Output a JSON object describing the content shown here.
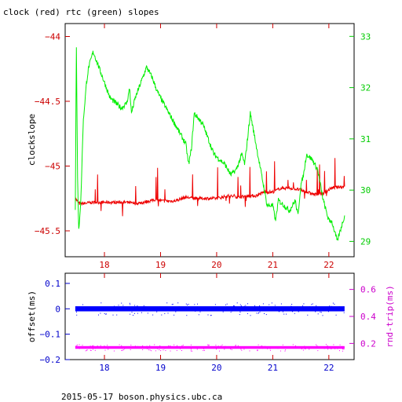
{
  "header": {
    "title": "clock (red) rtc (green) slopes"
  },
  "footer": {
    "text": "2015-05-17 boson.physics.ubc.ca"
  },
  "colors": {
    "red": "#ee0000",
    "green": "#00ee00",
    "blue": "#0000ff",
    "magenta": "#ff00ff",
    "tick_red": "#cc0000",
    "tick_green": "#00cc00",
    "tick_blue": "#0000cc",
    "tick_magenta": "#cc00cc"
  },
  "chart_data": [
    {
      "type": "line",
      "panel": "top",
      "title": "clock (red) rtc (green) slopes",
      "xlabel": "",
      "ylabel": "clockslope",
      "ylabel_right": "",
      "xlim": [
        17.3,
        22.45
      ],
      "ylim": [
        -45.7,
        -43.9
      ],
      "ylim_right": [
        28.7,
        33.25
      ],
      "x_ticks": [
        18,
        19,
        20,
        21,
        22
      ],
      "y_ticks": [
        -44,
        -44.5,
        -45,
        -45.5
      ],
      "y_ticks_right": [
        29,
        30,
        31,
        32,
        33
      ],
      "series": [
        {
          "axis": "left",
          "color": "#ee0000",
          "x": [
            17.48,
            17.55,
            17.6,
            17.8,
            18.0,
            18.2,
            18.4,
            18.55,
            18.7,
            18.9,
            19.05,
            19.25,
            19.45,
            19.6,
            19.8,
            20.0,
            20.2,
            20.4,
            20.55,
            20.7,
            20.85,
            21.0,
            21.15,
            21.3,
            21.45,
            21.6,
            21.75,
            21.9,
            22.05,
            22.2,
            22.28
          ],
          "y": [
            -45.25,
            -45.29,
            -45.29,
            -45.28,
            -45.28,
            -45.28,
            -45.28,
            -45.29,
            -45.28,
            -45.26,
            -45.27,
            -45.27,
            -45.24,
            -45.25,
            -45.25,
            -45.25,
            -45.23,
            -45.24,
            -45.23,
            -45.23,
            -45.2,
            -45.2,
            -45.17,
            -45.17,
            -45.18,
            -45.2,
            -45.22,
            -45.21,
            -45.17,
            -45.16,
            -45.16
          ]
        },
        {
          "axis": "right",
          "color": "#00ee00",
          "x": [
            17.48,
            17.5,
            17.52,
            17.54,
            17.56,
            17.58,
            17.62,
            17.68,
            17.72,
            17.8,
            17.9,
            18.0,
            18.1,
            18.2,
            18.3,
            18.4,
            18.45,
            18.48,
            18.55,
            18.65,
            18.75,
            18.85,
            18.95,
            19.05,
            19.15,
            19.25,
            19.35,
            19.45,
            19.5,
            19.55,
            19.6,
            19.75,
            19.85,
            19.95,
            20.05,
            20.15,
            20.25,
            20.35,
            20.45,
            20.5,
            20.55,
            20.6,
            20.7,
            20.8,
            20.9,
            21.0,
            21.05,
            21.1,
            21.2,
            21.3,
            21.4,
            21.45,
            21.5,
            21.55,
            21.6,
            21.7,
            21.8,
            21.9,
            22.0,
            22.05,
            22.1,
            22.15,
            22.2,
            22.28
          ],
          "y": [
            29.6,
            32.9,
            30.3,
            29.2,
            29.5,
            29.8,
            31.3,
            32.1,
            32.4,
            32.7,
            32.4,
            32.1,
            31.8,
            31.7,
            31.6,
            31.7,
            32.0,
            31.5,
            31.8,
            32.1,
            32.4,
            32.2,
            31.9,
            31.7,
            31.5,
            31.3,
            31.1,
            30.9,
            30.5,
            30.8,
            31.5,
            31.3,
            31.0,
            30.7,
            30.6,
            30.5,
            30.3,
            30.4,
            30.7,
            30.5,
            31.0,
            31.5,
            30.9,
            30.3,
            29.7,
            29.7,
            29.4,
            29.8,
            29.7,
            29.6,
            29.8,
            29.5,
            30.1,
            30.3,
            30.7,
            30.6,
            30.4,
            29.8,
            29.4,
            29.4,
            29.2,
            29.0,
            29.2,
            29.5
          ]
        }
      ]
    },
    {
      "type": "scatter",
      "panel": "bottom",
      "title": "",
      "xlabel": "",
      "ylabel": "offset(ms)",
      "ylabel_right": "rnd-trip(ms)",
      "xlim": [
        17.3,
        22.45
      ],
      "ylim": [
        -0.2,
        0.14
      ],
      "ylim_right": [
        0.08,
        0.72
      ],
      "x_ticks": [
        18,
        19,
        20,
        21,
        22
      ],
      "y_ticks": [
        0.1,
        0,
        -0.1,
        -0.2
      ],
      "y_ticks_right": [
        0.2,
        0.4,
        0.6
      ],
      "series": [
        {
          "axis": "left",
          "color": "#0000ff",
          "x_range": [
            17.48,
            22.28
          ],
          "center": 0.0,
          "spread": 0.01
        },
        {
          "axis": "right",
          "color": "#ff00ff",
          "x_range": [
            17.48,
            22.28
          ],
          "center": 0.17,
          "spread": 0.01
        }
      ]
    }
  ]
}
